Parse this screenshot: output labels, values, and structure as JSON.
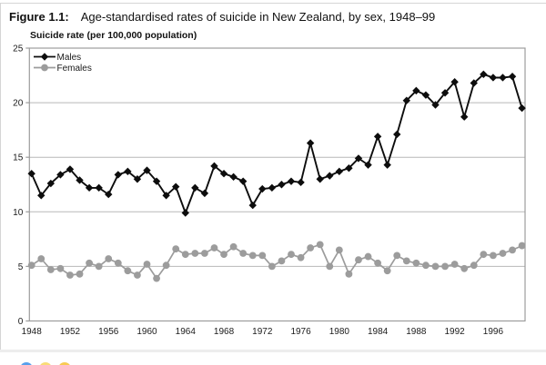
{
  "figure": {
    "label": "Figure 1.1:",
    "title": "Age-standardised rates of suicide in New Zealand, by sex, 1948–99"
  },
  "chart_data": {
    "type": "line",
    "title": "",
    "xlabel": "",
    "ylabel": "Suicide rate (per 100,000 population)",
    "ylim": [
      0,
      25
    ],
    "yticks": [
      0,
      5,
      10,
      15,
      20,
      25
    ],
    "xticks": [
      1948,
      1952,
      1956,
      1960,
      1964,
      1968,
      1972,
      1976,
      1980,
      1984,
      1988,
      1992,
      1996
    ],
    "grid": "horizontal",
    "legend_position": "top-left-inside",
    "plot_border_color": "#9c9c9c",
    "gridline_color": "#b8b8b8",
    "x": [
      1948,
      1949,
      1950,
      1951,
      1952,
      1953,
      1954,
      1955,
      1956,
      1957,
      1958,
      1959,
      1960,
      1961,
      1962,
      1963,
      1964,
      1965,
      1966,
      1967,
      1968,
      1969,
      1970,
      1971,
      1972,
      1973,
      1974,
      1975,
      1976,
      1977,
      1978,
      1979,
      1980,
      1981,
      1982,
      1983,
      1984,
      1985,
      1986,
      1987,
      1988,
      1989,
      1990,
      1991,
      1992,
      1993,
      1994,
      1995,
      1996,
      1997,
      1998,
      1999
    ],
    "series": [
      {
        "name": "Males",
        "color": "#0d0d0d",
        "marker": "diamond",
        "values": [
          13.5,
          11.5,
          12.6,
          13.4,
          13.9,
          12.9,
          12.2,
          12.2,
          11.6,
          13.4,
          13.7,
          13.0,
          13.8,
          12.8,
          11.5,
          12.3,
          9.9,
          12.2,
          11.7,
          14.2,
          13.5,
          13.2,
          12.8,
          10.6,
          12.1,
          12.2,
          12.5,
          12.8,
          12.7,
          16.3,
          13.0,
          13.3,
          13.7,
          14.0,
          14.9,
          14.3,
          16.9,
          14.3,
          17.1,
          20.2,
          21.1,
          20.7,
          19.8,
          20.9,
          21.9,
          18.7,
          21.8,
          22.6,
          22.3,
          22.3,
          22.4,
          19.5
        ]
      },
      {
        "name": "Females",
        "color": "#9c9c9c",
        "marker": "circle",
        "values": [
          5.1,
          5.7,
          4.7,
          4.8,
          4.2,
          4.3,
          5.3,
          5.0,
          5.7,
          5.3,
          4.6,
          4.2,
          5.2,
          3.9,
          5.1,
          6.6,
          6.1,
          6.2,
          6.2,
          6.7,
          6.1,
          6.8,
          6.2,
          6.0,
          6.0,
          5.0,
          5.5,
          6.1,
          5.8,
          6.7,
          7.0,
          5.0,
          6.5,
          4.3,
          5.6,
          5.9,
          5.3,
          4.6,
          6.0,
          5.5,
          5.3,
          5.1,
          5.0,
          5.0,
          5.2,
          4.8,
          5.1,
          6.1,
          6.0,
          6.2,
          6.5,
          6.9
        ]
      }
    ]
  },
  "footer_dots": [
    {
      "name": "blue-dot",
      "color": "#58a0ec"
    },
    {
      "name": "light-yellow-dot",
      "color": "#f9dc77"
    },
    {
      "name": "yellow-dot",
      "color": "#f8ca52"
    }
  ]
}
